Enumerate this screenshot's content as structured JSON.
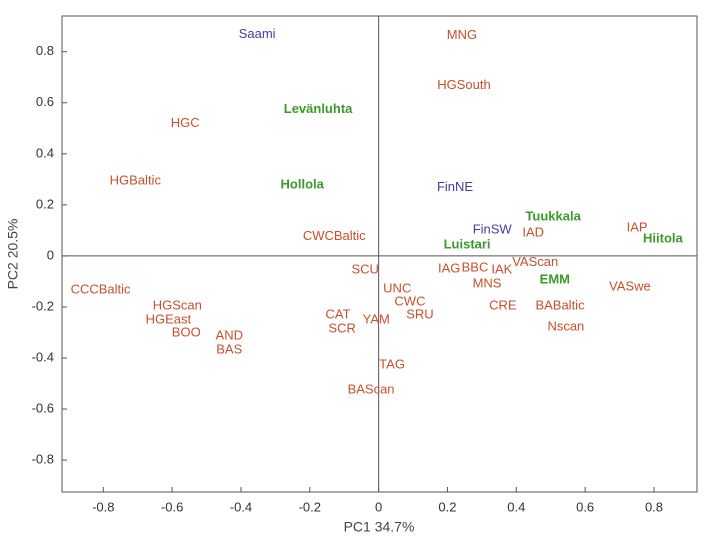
{
  "chart_data": {
    "type": "scatter",
    "xlabel": "PC1 34.7%",
    "ylabel": "PC2 20.5%",
    "xlim": [
      -0.92,
      0.925
    ],
    "ylim": [
      -0.925,
      0.94
    ],
    "xticks": [
      -0.8,
      -0.6,
      -0.4,
      -0.2,
      0,
      0.2,
      0.4,
      0.6,
      0.8
    ],
    "yticks": [
      -0.8,
      -0.6,
      -0.4,
      -0.2,
      0,
      0.2,
      0.4,
      0.6,
      0.8
    ],
    "zero_lines": true,
    "points": [
      {
        "label": "Saami",
        "x": -0.353,
        "y": 0.867,
        "color": "#4b3a9c",
        "bold": false
      },
      {
        "label": "MNG",
        "x": 0.242,
        "y": 0.863,
        "color": "#c8502a",
        "bold": false
      },
      {
        "label": "HGSouth",
        "x": 0.248,
        "y": 0.667,
        "color": "#c8502a",
        "bold": false
      },
      {
        "label": "Levänluhta",
        "x": -0.176,
        "y": 0.573,
        "color": "#3a9a2a",
        "bold": true
      },
      {
        "label": "HGC",
        "x": -0.562,
        "y": 0.518,
        "color": "#c8502a",
        "bold": false
      },
      {
        "label": "HGBaltic",
        "x": -0.707,
        "y": 0.294,
        "color": "#c8502a",
        "bold": false
      },
      {
        "label": "Hollola",
        "x": -0.222,
        "y": 0.278,
        "color": "#3a9a2a",
        "bold": true
      },
      {
        "label": "FinNE",
        "x": 0.222,
        "y": 0.267,
        "color": "#4b3a9c",
        "bold": false
      },
      {
        "label": "CWCBaltic",
        "x": -0.129,
        "y": 0.075,
        "color": "#c8502a",
        "bold": false
      },
      {
        "label": "Tuukkala",
        "x": 0.507,
        "y": 0.153,
        "color": "#3a9a2a",
        "bold": true
      },
      {
        "label": "IAP",
        "x": 0.751,
        "y": 0.11,
        "color": "#c8502a",
        "bold": false
      },
      {
        "label": "Hiitola",
        "x": 0.826,
        "y": 0.067,
        "color": "#3a9a2a",
        "bold": true
      },
      {
        "label": "FinSW",
        "x": 0.33,
        "y": 0.102,
        "color": "#4b3a9c",
        "bold": false
      },
      {
        "label": "IAD",
        "x": 0.449,
        "y": 0.09,
        "color": "#c8502a",
        "bold": false
      },
      {
        "label": "Luistari",
        "x": 0.257,
        "y": 0.043,
        "color": "#3a9a2a",
        "bold": true
      },
      {
        "label": "VAScan",
        "x": 0.455,
        "y": -0.027,
        "color": "#c8502a",
        "bold": false
      },
      {
        "label": "SCU",
        "x": -0.039,
        "y": -0.055,
        "color": "#c8502a",
        "bold": false
      },
      {
        "label": "IAG",
        "x": 0.205,
        "y": -0.051,
        "color": "#c8502a",
        "bold": false
      },
      {
        "label": "BBC",
        "x": 0.28,
        "y": -0.047,
        "color": "#c8502a",
        "bold": false
      },
      {
        "label": "IAK",
        "x": 0.358,
        "y": -0.055,
        "color": "#c8502a",
        "bold": false
      },
      {
        "label": "EMM",
        "x": 0.512,
        "y": -0.094,
        "color": "#3a9a2a",
        "bold": true
      },
      {
        "label": "CCCBaltic",
        "x": -0.808,
        "y": -0.133,
        "color": "#c8502a",
        "bold": false
      },
      {
        "label": "MNS",
        "x": 0.315,
        "y": -0.11,
        "color": "#c8502a",
        "bold": false
      },
      {
        "label": "VASwe",
        "x": 0.73,
        "y": -0.122,
        "color": "#c8502a",
        "bold": false
      },
      {
        "label": "UNC",
        "x": 0.054,
        "y": -0.129,
        "color": "#c8502a",
        "bold": false
      },
      {
        "label": "HGScan",
        "x": -0.585,
        "y": -0.196,
        "color": "#c8502a",
        "bold": false
      },
      {
        "label": "CWC",
        "x": 0.091,
        "y": -0.18,
        "color": "#c8502a",
        "bold": false
      },
      {
        "label": "CRE",
        "x": 0.361,
        "y": -0.196,
        "color": "#c8502a",
        "bold": false
      },
      {
        "label": "BABaltic",
        "x": 0.527,
        "y": -0.196,
        "color": "#c8502a",
        "bold": false
      },
      {
        "label": "HGEast",
        "x": -0.611,
        "y": -0.251,
        "color": "#c8502a",
        "bold": false
      },
      {
        "label": "CAT",
        "x": -0.118,
        "y": -0.231,
        "color": "#c8502a",
        "bold": false
      },
      {
        "label": "SRU",
        "x": 0.12,
        "y": -0.231,
        "color": "#c8502a",
        "bold": false
      },
      {
        "label": "YAM",
        "x": -0.007,
        "y": -0.251,
        "color": "#c8502a",
        "bold": false
      },
      {
        "label": "SCR",
        "x": -0.106,
        "y": -0.286,
        "color": "#c8502a",
        "bold": false
      },
      {
        "label": "Nscan",
        "x": 0.544,
        "y": -0.278,
        "color": "#c8502a",
        "bold": false
      },
      {
        "label": "BOO",
        "x": -0.559,
        "y": -0.302,
        "color": "#c8502a",
        "bold": false
      },
      {
        "label": "AND",
        "x": -0.434,
        "y": -0.314,
        "color": "#c8502a",
        "bold": false
      },
      {
        "label": "BAS",
        "x": -0.434,
        "y": -0.369,
        "color": "#c8502a",
        "bold": false
      },
      {
        "label": "TAG",
        "x": 0.039,
        "y": -0.427,
        "color": "#c8502a",
        "bold": false
      },
      {
        "label": "BAScan",
        "x": -0.022,
        "y": -0.525,
        "color": "#c8502a",
        "bold": false
      }
    ]
  }
}
